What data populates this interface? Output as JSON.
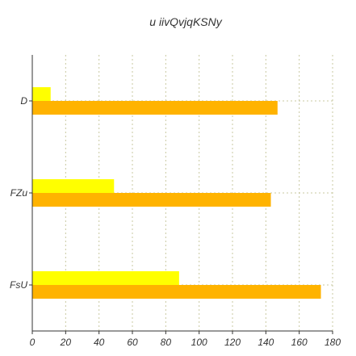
{
  "chart_data": {
    "type": "bar",
    "orientation": "horizontal",
    "title": "u  iivQvjqKSNy",
    "xlabel": "",
    "ylabel": "",
    "categories": [
      "D",
      "FZu",
      "FsU"
    ],
    "series": [
      {
        "values": [
          11,
          49,
          88
        ],
        "color": "#ffff00"
      },
      {
        "values": [
          147,
          143,
          173
        ],
        "color": "#ffb300"
      }
    ],
    "xlim": [
      0,
      180
    ],
    "xticks": [
      0,
      20,
      40,
      60,
      80,
      100,
      120,
      140,
      160,
      180
    ],
    "grid": true,
    "legend": "none"
  },
  "colors": {
    "grid": "#c8c8a0",
    "axis": "#333333",
    "background": "#ffffff"
  }
}
